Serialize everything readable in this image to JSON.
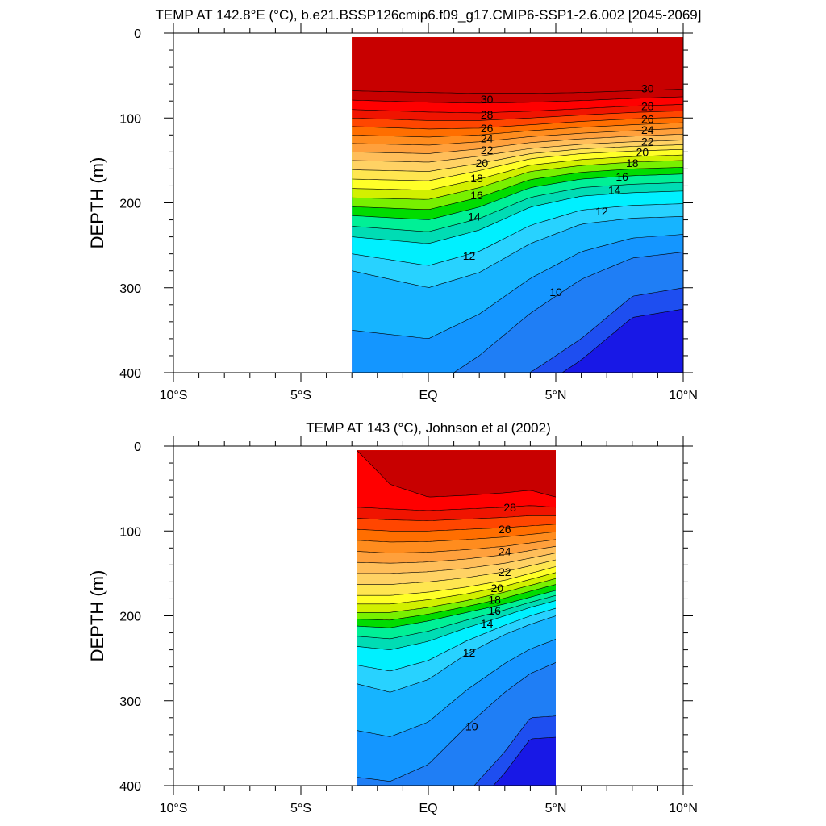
{
  "chart_data": [
    {
      "type": "contour",
      "title": "TEMP AT 142.8°E (°C), b.e21.BSSP126cmip6.f09_g17.CMIP6-SSP1-2.6.002 [2045-2069]",
      "ylabel": "DEPTH (m)",
      "xlim": [
        -10,
        10
      ],
      "ylim": [
        0,
        400
      ],
      "y_reversed": true,
      "x_ticks": [
        -10,
        -5,
        0,
        5,
        10
      ],
      "x_tick_labels": [
        "10°S",
        "5°S",
        "EQ",
        "5°N",
        "10°N"
      ],
      "y_ticks": [
        0,
        100,
        200,
        300,
        400
      ],
      "y_tick_labels": [
        "0",
        "100",
        "200",
        "300",
        "400"
      ],
      "data_lat_range": [
        -3,
        10
      ],
      "data_depth_range": [
        5,
        400
      ],
      "contour_levels": [
        8,
        9,
        10,
        11,
        12,
        13,
        14,
        15,
        16,
        17,
        18,
        19,
        20,
        21,
        22,
        23,
        24,
        25,
        26,
        27,
        28,
        29,
        30
      ],
      "isotherm_depths_lat": [
        -3,
        0,
        2,
        4,
        6,
        8,
        10
      ],
      "isotherm_depths": {
        "30": [
          68,
          70,
          71,
          71,
          70,
          68,
          66
        ],
        "28": [
          90,
          93,
          94,
          92,
          89,
          86,
          84
        ],
        "26": [
          110,
          113,
          112,
          108,
          104,
          101,
          99
        ],
        "24": [
          130,
          132,
          128,
          122,
          118,
          115,
          112
        ],
        "22": [
          150,
          152,
          145,
          136,
          131,
          128,
          126
        ],
        "20": [
          172,
          174,
          162,
          148,
          142,
          139,
          137
        ],
        "18": [
          194,
          196,
          182,
          163,
          156,
          152,
          150
        ],
        "16": [
          215,
          220,
          205,
          182,
          172,
          168,
          166
        ],
        "14": [
          240,
          248,
          232,
          205,
          192,
          188,
          186
        ],
        "12": [
          280,
          300,
          282,
          248,
          225,
          218,
          216
        ],
        "10": [
          420,
          420,
          380,
          330,
          290,
          265,
          258
        ],
        "9": [
          420,
          420,
          420,
          400,
          360,
          310,
          300
        ]
      },
      "contour_labels": [
        {
          "text": "30",
          "lat": 2.3,
          "depth": 78
        },
        {
          "text": "28",
          "lat": 2.3,
          "depth": 96
        },
        {
          "text": "26",
          "lat": 2.3,
          "depth": 112
        },
        {
          "text": "24",
          "lat": 2.3,
          "depth": 124
        },
        {
          "text": "22",
          "lat": 2.3,
          "depth": 138
        },
        {
          "text": "20",
          "lat": 2.1,
          "depth": 153
        },
        {
          "text": "18",
          "lat": 1.9,
          "depth": 171
        },
        {
          "text": "16",
          "lat": 1.9,
          "depth": 191
        },
        {
          "text": "14",
          "lat": 1.8,
          "depth": 216
        },
        {
          "text": "12",
          "lat": 1.6,
          "depth": 262
        },
        {
          "text": "10",
          "lat": 5.0,
          "depth": 305
        },
        {
          "text": "30",
          "lat": 8.6,
          "depth": 65
        },
        {
          "text": "28",
          "lat": 8.6,
          "depth": 86
        },
        {
          "text": "26",
          "lat": 8.6,
          "depth": 101
        },
        {
          "text": "24",
          "lat": 8.6,
          "depth": 114
        },
        {
          "text": "22",
          "lat": 8.6,
          "depth": 128
        },
        {
          "text": "20",
          "lat": 8.4,
          "depth": 140
        },
        {
          "text": "18",
          "lat": 8.0,
          "depth": 153
        },
        {
          "text": "16",
          "lat": 7.6,
          "depth": 169
        },
        {
          "text": "14",
          "lat": 7.3,
          "depth": 185
        },
        {
          "text": "12",
          "lat": 6.8,
          "depth": 210
        }
      ]
    },
    {
      "type": "contour",
      "title": "TEMP AT 143 (°C), Johnson et al (2002)",
      "ylabel": "DEPTH (m)",
      "xlim": [
        -10,
        10
      ],
      "ylim": [
        0,
        400
      ],
      "y_reversed": true,
      "x_ticks": [
        -10,
        -5,
        0,
        5,
        10
      ],
      "x_tick_labels": [
        "10°S",
        "5°S",
        "EQ",
        "5°N",
        "10°N"
      ],
      "y_ticks": [
        0,
        100,
        200,
        300,
        400
      ],
      "y_tick_labels": [
        "0",
        "100",
        "200",
        "300",
        "400"
      ],
      "data_lat_range": [
        -2.8,
        5
      ],
      "data_depth_range": [
        5,
        400
      ],
      "contour_levels": [
        8,
        9,
        10,
        11,
        12,
        13,
        14,
        15,
        16,
        17,
        18,
        19,
        20,
        21,
        22,
        23,
        24,
        25,
        26,
        27,
        28,
        29
      ],
      "isotherm_depths_lat": [
        -2.8,
        -1.5,
        0,
        1.5,
        3,
        4,
        5
      ],
      "isotherm_depths": {
        "29": [
          5,
          45,
          60,
          58,
          55,
          52,
          60
        ],
        "28": [
          72,
          74,
          76,
          74,
          72,
          70,
          72
        ],
        "26": [
          98,
          100,
          100,
          98,
          96,
          94,
          92
        ],
        "24": [
          124,
          126,
          125,
          122,
          118,
          114,
          110
        ],
        "22": [
          150,
          150,
          148,
          144,
          138,
          132,
          126
        ],
        "20": [
          176,
          176,
          172,
          166,
          158,
          150,
          142
        ],
        "18": [
          196,
          196,
          190,
          182,
          172,
          164,
          156
        ],
        "16": [
          212,
          214,
          206,
          196,
          186,
          178,
          170
        ],
        "14": [
          236,
          240,
          230,
          214,
          200,
          190,
          182
        ],
        "12": [
          280,
          290,
          275,
          245,
          222,
          210,
          200
        ],
        "10": [
          390,
          395,
          375,
          330,
          290,
          268,
          255
        ],
        "9": [
          420,
          420,
          420,
          410,
          360,
          320,
          318
        ]
      },
      "contour_labels": [
        {
          "text": "28",
          "lat": 3.2,
          "depth": 72
        },
        {
          "text": "26",
          "lat": 3.0,
          "depth": 98
        },
        {
          "text": "24",
          "lat": 3.0,
          "depth": 124
        },
        {
          "text": "22",
          "lat": 3.0,
          "depth": 148
        },
        {
          "text": "20",
          "lat": 2.7,
          "depth": 167
        },
        {
          "text": "18",
          "lat": 2.6,
          "depth": 181
        },
        {
          "text": "16",
          "lat": 2.6,
          "depth": 194
        },
        {
          "text": "14",
          "lat": 2.3,
          "depth": 209
        },
        {
          "text": "12",
          "lat": 1.6,
          "depth": 243
        },
        {
          "text": "10",
          "lat": 1.7,
          "depth": 330
        }
      ]
    }
  ]
}
